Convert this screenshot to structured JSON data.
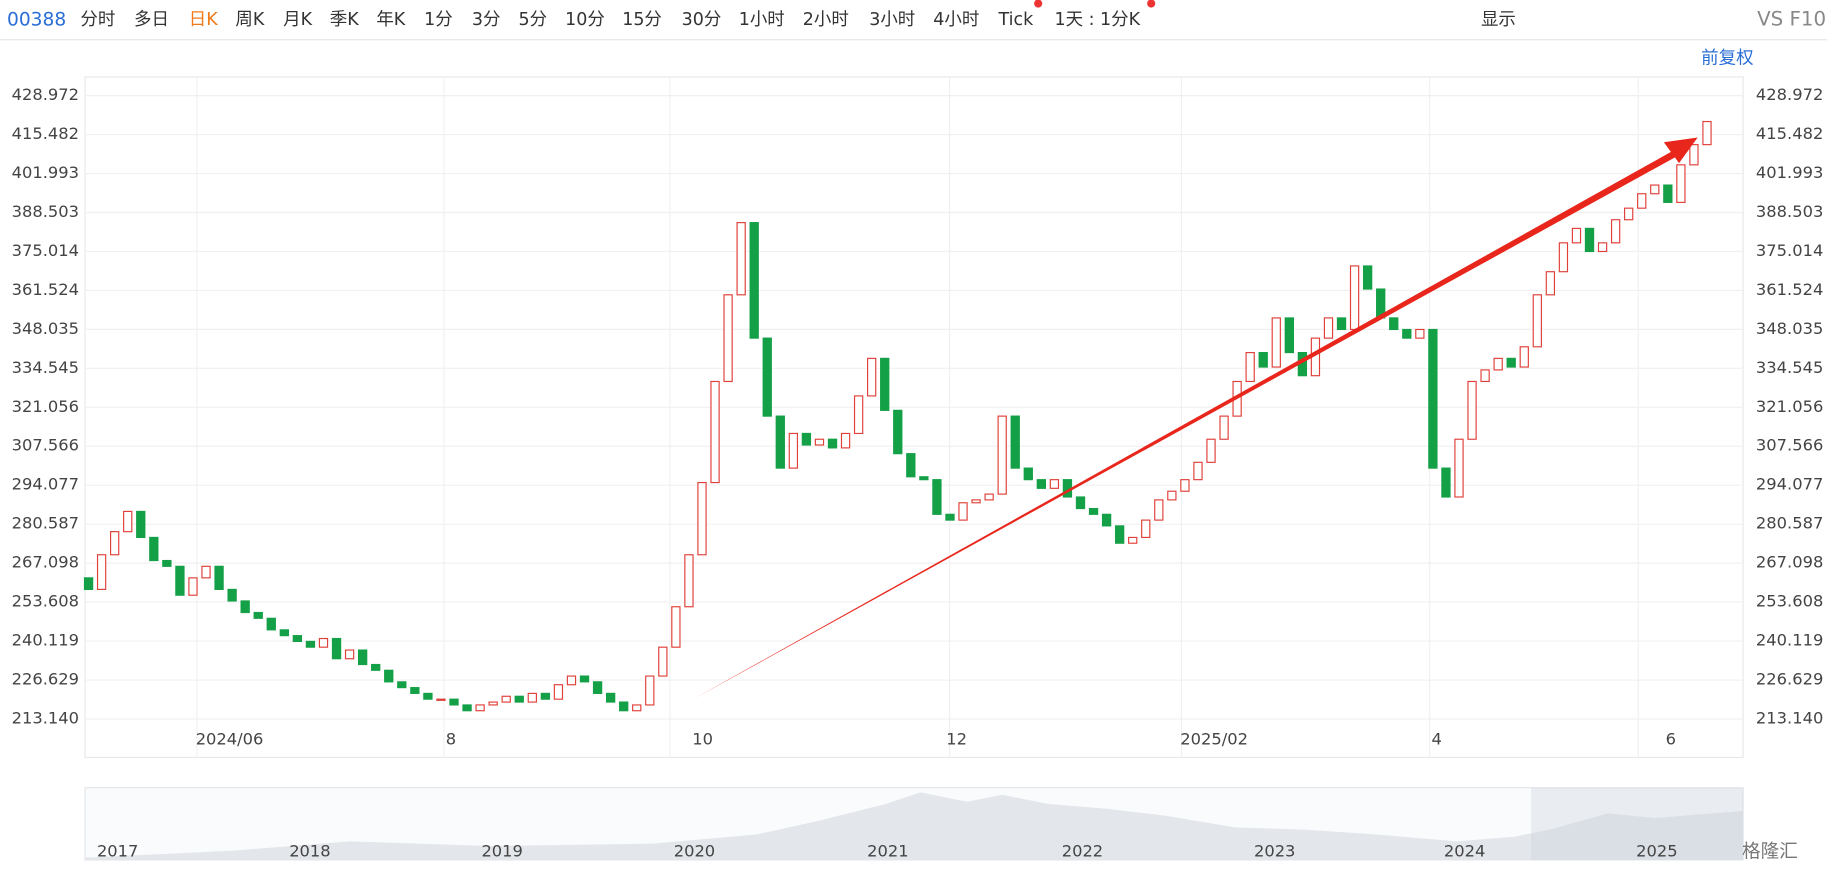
{
  "toolbar": {
    "code": "00388",
    "periods": [
      "分时",
      "多日",
      "日K",
      "周K",
      "月K",
      "季K",
      "年K",
      "1分",
      "3分",
      "5分",
      "10分",
      "15分",
      "30分",
      "1小时",
      "2小时",
      "3小时",
      "4小时",
      "Tick",
      "1天 : 1分K"
    ],
    "display": "显示",
    "compare": "VS F10",
    "adjust": "前复权"
  },
  "chart_data": {
    "type": "candlestick",
    "open": [
      262,
      258,
      270,
      278,
      285,
      276,
      268,
      266,
      256,
      262,
      266,
      258,
      254,
      250,
      248,
      244,
      242,
      240,
      238,
      241,
      234,
      237,
      232,
      230,
      226,
      224,
      222,
      220,
      220,
      218,
      216,
      218,
      219,
      221,
      219,
      222,
      220,
      225,
      228,
      226,
      222,
      219,
      216,
      218,
      228,
      238,
      252,
      270,
      295,
      330,
      360,
      385,
      345,
      318,
      300,
      312,
      308,
      310,
      307,
      312,
      325,
      338,
      320,
      305,
      297,
      296,
      284,
      282,
      288,
      289,
      291,
      318,
      300,
      296,
      293,
      296,
      290,
      286,
      284,
      280,
      274,
      276,
      282,
      289,
      292,
      296,
      302,
      310,
      318,
      330,
      340,
      335,
      352,
      340,
      332,
      345,
      352,
      348,
      370,
      362,
      352,
      348,
      345,
      348,
      300,
      290,
      310,
      330,
      334,
      338,
      335,
      342,
      360,
      368,
      378,
      383,
      375,
      378,
      386,
      390,
      395,
      398,
      392,
      405,
      412
    ],
    "close": [
      258,
      270,
      278,
      285,
      276,
      268,
      266,
      256,
      262,
      266,
      258,
      254,
      250,
      248,
      244,
      242,
      240,
      238,
      241,
      234,
      237,
      232,
      230,
      226,
      224,
      222,
      220,
      220,
      218,
      216,
      218,
      219,
      221,
      219,
      222,
      220,
      225,
      228,
      226,
      222,
      219,
      216,
      218,
      228,
      238,
      252,
      270,
      295,
      330,
      360,
      385,
      345,
      318,
      300,
      312,
      308,
      310,
      307,
      312,
      325,
      338,
      320,
      305,
      297,
      296,
      284,
      282,
      288,
      289,
      291,
      318,
      300,
      296,
      293,
      296,
      290,
      286,
      284,
      280,
      274,
      276,
      282,
      289,
      292,
      296,
      302,
      310,
      318,
      330,
      340,
      335,
      352,
      340,
      332,
      345,
      352,
      348,
      370,
      362,
      352,
      348,
      345,
      348,
      300,
      290,
      310,
      330,
      334,
      338,
      335,
      342,
      360,
      368,
      378,
      383,
      375,
      378,
      386,
      390,
      395,
      398,
      392,
      405,
      412,
      420
    ],
    "up_color": "#e0403a",
    "down_color": "#14a047",
    "ylim": [
      199.83,
      435.43
    ],
    "yticks": [
      {
        "value": 213.14,
        "label": "213.140"
      },
      226.629,
      240.119,
      253.608,
      267.098,
      280.587,
      294.077,
      307.566,
      321.056,
      334.545,
      348.035,
      361.524,
      375.014,
      388.503,
      401.993,
      415.482,
      428.972
    ],
    "x_labels": [
      "2024/06",
      "8",
      "10",
      "12",
      "2025/02",
      "4",
      "6"
    ],
    "grid": true
  },
  "navigator": {
    "years": [
      "2017",
      "2018",
      "2019",
      "2020",
      "2021",
      "2022",
      "2023",
      "2024",
      "2025"
    ]
  },
  "watermark": "格隆汇"
}
